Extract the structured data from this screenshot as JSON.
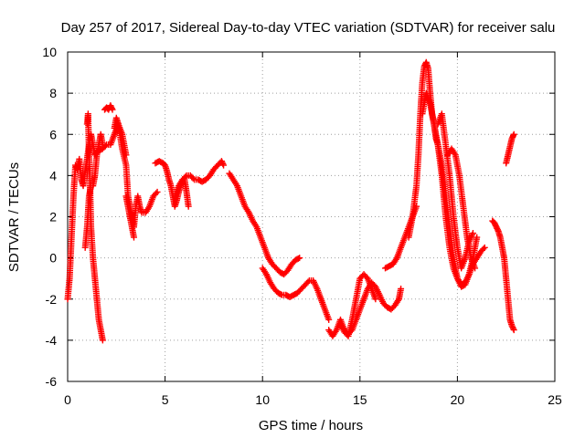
{
  "chart_data": {
    "type": "scatter",
    "title": "Day 257 of 2017, Sidereal Day-to-day VTEC variation (SDTVAR) for receiver salu",
    "xlabel": "GPS time / hours",
    "ylabel": "SDTVAR / TECUs",
    "xlim": [
      0,
      25
    ],
    "ylim": [
      -6,
      10
    ],
    "xticks": [
      0,
      5,
      10,
      15,
      20,
      25
    ],
    "yticks": [
      -6,
      -4,
      -2,
      0,
      2,
      4,
      6,
      8,
      10
    ],
    "xtick_labels": [
      "0",
      "5",
      "10",
      "15",
      "20",
      "25"
    ],
    "ytick_labels": [
      "-6",
      "-4",
      "-2",
      "0",
      "2",
      "4",
      "6",
      "8",
      "10"
    ],
    "grid": true,
    "marker": "plus",
    "color": "#ff0000",
    "series": [
      {
        "name": "arc-1",
        "x": [
          0.0,
          0.1,
          0.2,
          0.3,
          0.4,
          0.5,
          0.6,
          0.7,
          0.8,
          0.9,
          1.0,
          1.1,
          1.2,
          1.3,
          1.4,
          1.5
        ],
        "y": [
          -2.0,
          -1.0,
          1.0,
          3.0,
          4.5,
          4.3,
          4.8,
          3.8,
          3.5,
          4.2,
          4.8,
          5.5,
          6.0,
          5.5,
          5.0,
          5.2
        ]
      },
      {
        "name": "arc-2",
        "x": [
          1.0,
          1.05,
          1.1,
          1.15,
          1.2,
          1.3,
          1.4,
          1.5,
          1.6,
          1.7,
          1.8
        ],
        "y": [
          6.5,
          7.0,
          5.0,
          3.5,
          1.5,
          0.0,
          -1.0,
          -2.0,
          -3.0,
          -3.5,
          -4.0
        ]
      },
      {
        "name": "arc-3",
        "x": [
          0.9,
          1.0,
          1.1,
          1.2,
          1.3,
          1.4,
          1.5,
          1.6,
          1.7,
          1.8
        ],
        "y": [
          0.5,
          1.5,
          3.0,
          3.5,
          3.5,
          4.0,
          5.0,
          5.5,
          6.0,
          5.5
        ]
      },
      {
        "name": "arc-4",
        "x": [
          1.6,
          1.8,
          2.0,
          2.2,
          2.4,
          2.6,
          2.8,
          3.0
        ],
        "y": [
          5.2,
          5.3,
          5.5,
          5.5,
          6.0,
          6.5,
          6.0,
          5.0
        ]
      },
      {
        "name": "arc-5",
        "x": [
          1.9,
          2.0,
          2.1,
          2.2,
          2.3
        ],
        "y": [
          7.2,
          7.3,
          7.2,
          7.4,
          7.2
        ]
      },
      {
        "name": "arc-6",
        "x": [
          2.4,
          2.5,
          2.6,
          2.8,
          3.0,
          3.1,
          3.2,
          3.3,
          3.4,
          3.5,
          3.6,
          3.7,
          3.8,
          4.0,
          4.2,
          4.4,
          4.6
        ],
        "y": [
          6.3,
          6.8,
          6.5,
          5.3,
          4.5,
          3.0,
          2.5,
          2.0,
          1.5,
          2.5,
          3.0,
          2.5,
          2.2,
          2.2,
          2.5,
          3.0,
          3.2
        ]
      },
      {
        "name": "arc-7",
        "x": [
          3.0,
          3.1,
          3.2,
          3.3,
          3.4
        ],
        "y": [
          3.0,
          2.5,
          2.0,
          1.5,
          1.0
        ]
      },
      {
        "name": "arc-8",
        "x": [
          4.5,
          4.7,
          4.9,
          5.0,
          5.1,
          5.2,
          5.3,
          5.4,
          5.5,
          5.6,
          5.7,
          5.8,
          5.9,
          6.0,
          6.1,
          6.2
        ],
        "y": [
          4.6,
          4.7,
          4.6,
          4.5,
          4.2,
          3.8,
          3.5,
          3.0,
          2.5,
          2.8,
          3.2,
          3.5,
          3.8,
          3.8,
          3.2,
          2.5
        ]
      },
      {
        "name": "arc-9",
        "x": [
          5.5,
          5.7,
          5.9,
          6.1,
          6.3,
          6.5,
          6.7,
          6.9,
          7.1,
          7.3,
          7.5,
          7.7,
          7.9,
          8.0
        ],
        "y": [
          3.0,
          3.5,
          3.8,
          4.0,
          4.0,
          3.8,
          3.8,
          3.7,
          3.8,
          4.0,
          4.3,
          4.5,
          4.7,
          4.5
        ]
      },
      {
        "name": "arc-10",
        "x": [
          8.3,
          8.5,
          8.7,
          8.9,
          9.1,
          9.3,
          9.5,
          9.7,
          9.9,
          10.1,
          10.3,
          10.5,
          10.7,
          10.9,
          11.1,
          11.3,
          11.5,
          11.7,
          11.9
        ],
        "y": [
          4.1,
          3.8,
          3.5,
          3.0,
          2.5,
          2.2,
          1.8,
          1.5,
          1.0,
          0.5,
          0.0,
          -0.3,
          -0.5,
          -0.7,
          -0.8,
          -0.6,
          -0.3,
          -0.1,
          0.0
        ]
      },
      {
        "name": "arc-11",
        "x": [
          10.0,
          10.2,
          10.4,
          10.6,
          10.8,
          11.0,
          11.2,
          11.4,
          11.6,
          11.8,
          12.0,
          12.2,
          12.4,
          12.6,
          12.8,
          13.0,
          13.2,
          13.4
        ],
        "y": [
          -0.5,
          -0.8,
          -1.2,
          -1.5,
          -1.7,
          -1.8,
          -1.8,
          -1.9,
          -1.8,
          -1.7,
          -1.5,
          -1.3,
          -1.1,
          -1.1,
          -1.5,
          -2.0,
          -2.5,
          -3.0
        ]
      },
      {
        "name": "arc-12",
        "x": [
          13.4,
          13.6,
          13.8,
          14.0,
          14.2,
          14.4,
          14.6,
          14.8,
          15.0,
          15.2,
          15.4,
          15.6,
          15.8,
          16.0,
          16.2,
          16.4,
          16.6,
          16.8,
          17.0,
          17.1
        ],
        "y": [
          -3.5,
          -3.8,
          -3.5,
          -3.0,
          -3.5,
          -3.7,
          -3.5,
          -3.0,
          -2.5,
          -2.0,
          -1.5,
          -1.2,
          -1.4,
          -1.8,
          -2.2,
          -2.4,
          -2.5,
          -2.3,
          -2.0,
          -1.5
        ]
      },
      {
        "name": "arc-13",
        "x": [
          14.0,
          14.2,
          14.4,
          14.6,
          14.8,
          15.0,
          15.2,
          15.4,
          15.6,
          15.8
        ],
        "y": [
          -3.2,
          -3.6,
          -3.8,
          -3.0,
          -2.0,
          -1.0,
          -0.8,
          -1.0,
          -1.5,
          -2.0
        ]
      },
      {
        "name": "arc-14",
        "x": [
          16.3,
          16.5,
          16.7,
          16.9,
          17.1,
          17.3,
          17.5,
          17.7,
          17.9
        ],
        "y": [
          -0.5,
          -0.4,
          -0.3,
          0.0,
          0.5,
          1.0,
          1.5,
          2.0,
          2.5
        ]
      },
      {
        "name": "arc-15",
        "x": [
          17.5,
          17.7,
          17.9,
          18.0,
          18.1,
          18.2,
          18.3,
          18.4,
          18.5,
          18.6,
          18.7,
          18.8,
          18.9,
          19.0,
          19.2,
          19.4,
          19.6,
          19.8,
          20.0,
          20.2,
          20.4,
          20.6,
          20.8,
          21.0,
          21.2,
          21.4
        ],
        "y": [
          1.0,
          2.0,
          3.5,
          5.0,
          7.0,
          8.5,
          9.3,
          9.5,
          9.2,
          8.0,
          7.0,
          6.5,
          5.8,
          5.5,
          4.5,
          3.0,
          1.5,
          0.0,
          -1.0,
          -1.3,
          -1.2,
          -0.8,
          -0.3,
          0.0,
          0.3,
          0.5
        ]
      },
      {
        "name": "arc-16",
        "x": [
          18.2,
          18.4,
          18.6,
          18.8,
          19.0,
          19.2,
          19.4,
          19.6,
          19.8,
          20.0,
          20.2,
          20.4,
          20.6,
          20.8,
          21.0
        ],
        "y": [
          7.0,
          8.0,
          7.5,
          6.5,
          5.5,
          4.0,
          2.0,
          0.5,
          -0.5,
          -1.0,
          -1.4,
          -1.3,
          -0.8,
          0.0,
          1.0
        ]
      },
      {
        "name": "arc-17",
        "x": [
          19.0,
          19.2,
          19.4,
          19.6,
          19.8,
          20.0,
          20.2,
          20.4,
          20.6,
          20.8
        ],
        "y": [
          6.5,
          7.0,
          5.5,
          4.0,
          2.0,
          0.5,
          -0.5,
          0.0,
          0.8,
          1.2
        ]
      },
      {
        "name": "arc-18",
        "x": [
          19.5,
          19.7,
          19.9,
          20.1,
          20.3,
          20.5,
          20.7,
          20.9
        ],
        "y": [
          5.0,
          5.3,
          5.0,
          4.0,
          2.5,
          1.0,
          0.0,
          -0.5
        ]
      },
      {
        "name": "arc-19",
        "x": [
          21.8,
          21.9,
          22.0,
          22.1,
          22.2,
          22.3,
          22.4,
          22.5,
          22.6,
          22.7,
          22.8,
          22.9
        ],
        "y": [
          1.8,
          1.7,
          1.5,
          1.3,
          1.0,
          0.5,
          0.0,
          -1.0,
          -2.0,
          -3.0,
          -3.3,
          -3.5
        ]
      },
      {
        "name": "arc-20",
        "x": [
          22.5,
          22.6,
          22.7,
          22.8,
          22.9
        ],
        "y": [
          4.6,
          5.0,
          5.4,
          5.8,
          6.0
        ]
      }
    ]
  }
}
